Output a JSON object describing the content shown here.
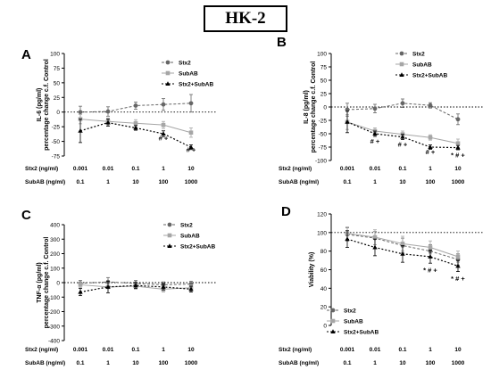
{
  "figure": {
    "title": "HK-2"
  },
  "series_names": [
    "Stx2",
    "SubAB",
    "Stx2+SubAB"
  ],
  "x_table": {
    "stx2_label": "Stx2 (ng/ml)",
    "subab_label": "SubAB (ng/ml)",
    "stx2_values": [
      "0.001",
      "0.01",
      "0.1",
      "1",
      "10"
    ],
    "subab_values": [
      "0.1",
      "1",
      "10",
      "100",
      "1000"
    ]
  },
  "colors": {
    "stx2": "#666666",
    "subab": "#a6a6a6",
    "combo": "#000000"
  },
  "chart_data": [
    {
      "panel": "A",
      "type": "line",
      "ylabel_top": "IL-6 (pg/ml)",
      "ylabel_bottom": "percentage change c.f. Control",
      "ylim": [
        -75,
        100
      ],
      "yticks": [
        -75,
        -50,
        -25,
        0,
        25,
        50,
        75,
        100
      ],
      "baseline": 0,
      "legend_position": "top-right",
      "x": [
        "0.001 / 0.1",
        "0.01 / 1",
        "0.1 / 10",
        "1 / 100",
        "10 / 1000"
      ],
      "series": [
        {
          "name": "Stx2",
          "values": [
            0,
            1,
            11,
            13,
            15
          ],
          "errors": [
            10,
            8,
            6,
            10,
            15
          ]
        },
        {
          "name": "SubAB",
          "values": [
            -12,
            -16,
            -19,
            -22,
            -35
          ],
          "errors": [
            8,
            6,
            6,
            6,
            8
          ]
        },
        {
          "name": "Stx2+SubAB",
          "values": [
            -32,
            -18,
            -27,
            -37,
            -60
          ],
          "errors": [
            20,
            6,
            4,
            5,
            4
          ]
        }
      ],
      "annotations": [
        {
          "x_index": 3,
          "y": -48,
          "text": "# +"
        },
        {
          "x_index": 4,
          "y": -68,
          "text": "# +"
        }
      ]
    },
    {
      "panel": "B",
      "type": "line",
      "ylabel_top": "IL-8 (pg/ml)",
      "ylabel_bottom": "percentage change c.f. Control",
      "ylim": [
        -100,
        100
      ],
      "yticks": [
        -100,
        -75,
        -50,
        -25,
        0,
        25,
        50,
        75,
        100
      ],
      "baseline": 0,
      "legend_position": "top-right",
      "x": [
        "0.001 / 0.1",
        "0.01 / 1",
        "0.1 / 10",
        "1 / 100",
        "10 / 1000"
      ],
      "series": [
        {
          "name": "Stx2",
          "values": [
            -5,
            -3,
            7,
            3,
            -23
          ],
          "errors": [
            12,
            8,
            8,
            5,
            10
          ]
        },
        {
          "name": "SubAB",
          "values": [
            -28,
            -45,
            -51,
            -57,
            -68
          ],
          "errors": [
            14,
            6,
            6,
            5,
            8
          ]
        },
        {
          "name": "Stx2+SubAB",
          "values": [
            -28,
            -50,
            -56,
            -75,
            -76
          ],
          "errors": [
            20,
            5,
            5,
            4,
            4
          ]
        }
      ],
      "annotations": [
        {
          "x_index": 1,
          "y": -68,
          "text": "# +"
        },
        {
          "x_index": 2,
          "y": -74,
          "text": "# +"
        },
        {
          "x_index": 3,
          "y": -88,
          "text": "# +"
        },
        {
          "x_index": 4,
          "y": -94,
          "text": "* # +"
        }
      ]
    },
    {
      "panel": "C",
      "type": "line",
      "ylabel_top": "TNF-α (pg/ml)",
      "ylabel_bottom": "percentage change c.f. Control",
      "ylim": [
        -400,
        400
      ],
      "yticks": [
        -400,
        -300,
        -200,
        -100,
        0,
        100,
        200,
        300,
        400
      ],
      "baseline": 0,
      "legend_position": "top-right",
      "x": [
        "0.001 / 0.1",
        "0.01 / 1",
        "0.1 / 10",
        "1 / 100",
        "10 / 1000"
      ],
      "series": [
        {
          "name": "Stx2",
          "values": [
            -5,
            5,
            -5,
            -15,
            -10
          ],
          "errors": [
            20,
            30,
            20,
            20,
            20
          ]
        },
        {
          "name": "SubAB",
          "values": [
            -15,
            -30,
            -25,
            -45,
            -35
          ],
          "errors": [
            20,
            40,
            20,
            20,
            20
          ]
        },
        {
          "name": "Stx2+SubAB",
          "values": [
            -65,
            -30,
            -20,
            -30,
            -45
          ],
          "errors": [
            25,
            40,
            20,
            20,
            20
          ]
        }
      ],
      "annotations": []
    },
    {
      "panel": "D",
      "type": "line",
      "ylabel_top": "Viability (%)",
      "ylabel_bottom": "",
      "ylim": [
        0,
        120
      ],
      "yticks": [
        0,
        20,
        40,
        60,
        80,
        100,
        120
      ],
      "baseline": 100,
      "legend_position": "bottom-left",
      "x": [
        "0.001 / 0.1",
        "0.01 / 1",
        "0.1 / 10",
        "1 / 100",
        "10 / 1000"
      ],
      "series": [
        {
          "name": "Stx2",
          "values": [
            98,
            94,
            86,
            80,
            71
          ],
          "errors": [
            7,
            7,
            8,
            7,
            6
          ]
        },
        {
          "name": "SubAB",
          "values": [
            99,
            95,
            88,
            84,
            74
          ],
          "errors": [
            7,
            8,
            8,
            7,
            6
          ]
        },
        {
          "name": "Stx2+SubAB",
          "values": [
            93,
            84,
            77,
            74,
            64
          ],
          "errors": [
            9,
            9,
            9,
            7,
            6
          ]
        }
      ],
      "annotations": [
        {
          "x_index": 3,
          "y": 57,
          "text": "* # +"
        },
        {
          "x_index": 4,
          "y": 48,
          "text": "* # +"
        }
      ]
    }
  ]
}
